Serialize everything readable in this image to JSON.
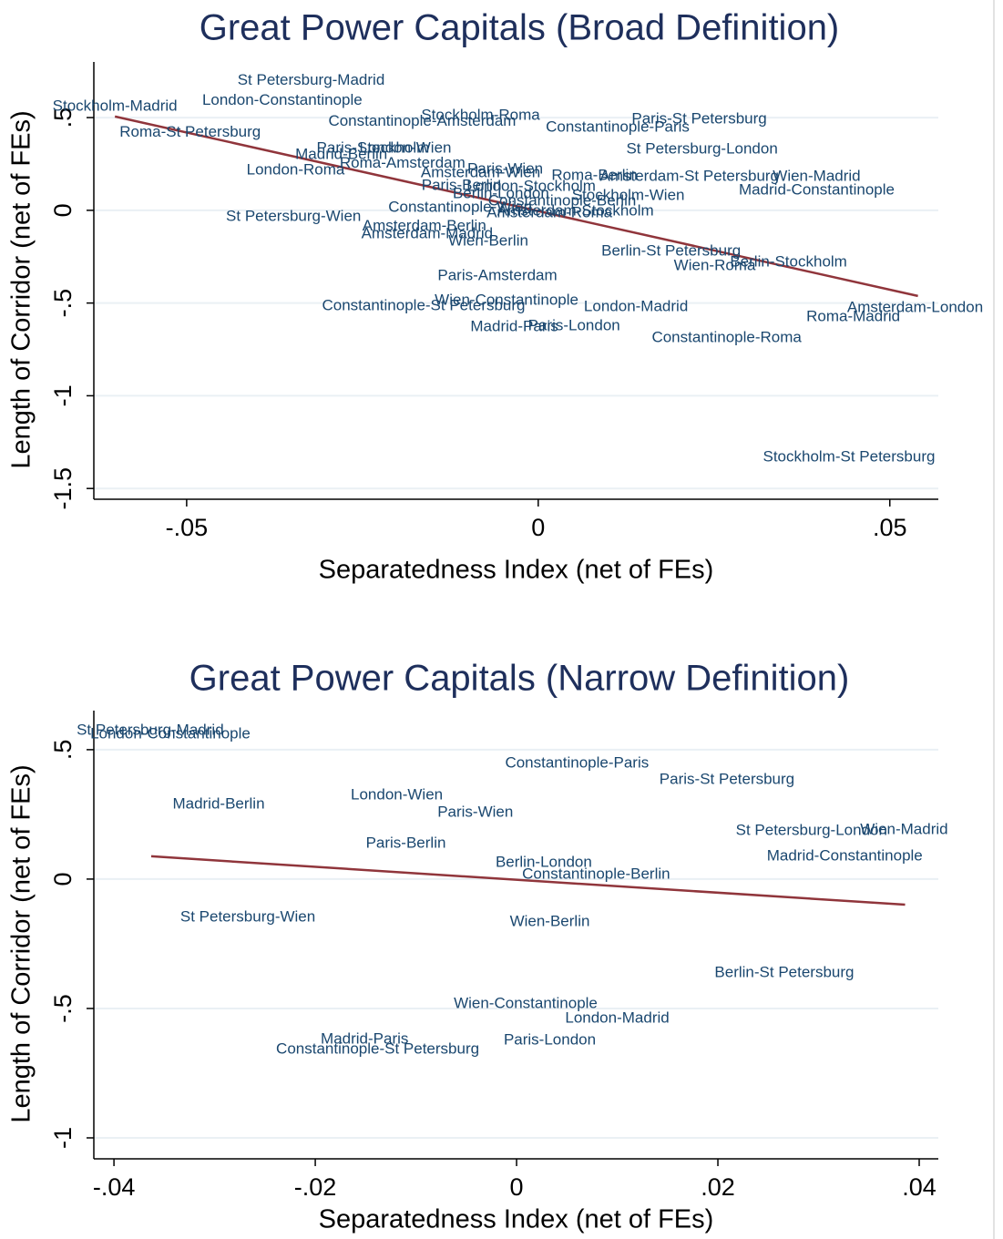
{
  "chart_data": [
    {
      "type": "scatter",
      "title": "Great Power Capitals (Broad Definition)",
      "x_label": "Separatedness Index (net of FEs)",
      "y_label": "Length of Corridor (net of FEs)",
      "xlim": [
        -0.0632,
        0.0569
      ],
      "ylim": [
        -1.558,
        0.8
      ],
      "xticks": [
        {
          "value": -0.05,
          "label": "-.05"
        },
        0,
        {
          "value": 0.05,
          "label": ".05"
        }
      ],
      "yticks": [
        {
          "value": -1.5,
          "label": "-1.5"
        },
        -1,
        {
          "value": -0.5,
          "label": "-.5"
        },
        0,
        {
          "value": 0.5,
          "label": ".5"
        }
      ],
      "grid": true,
      "label_color": "#1a476f",
      "title_color": "#1e2f5c",
      "labels": [
        "St Petersburg-Madrid",
        "Stockholm-Madrid",
        "London-Constantinople",
        "Roma-St Petersburg",
        "Constantinople-Amsterdam",
        "Stockholm-Roma",
        "Constantinople-Paris",
        "Paris-St Petersburg",
        "St Petersburg-London",
        "Paris-Stockholm",
        "London-Wien",
        "Madrid-Berlin",
        "Roma-Amsterdam",
        "London-Roma",
        "Amsterdam-Wien",
        "Paris-Wien",
        "Roma-Berlin",
        "Amsterdam-St Petersburg",
        "Wien-Madrid",
        "Madrid-Constantinople",
        "Paris-Berlin",
        "London-Stockholm",
        "Berlin-London",
        "Stockholm-Wien",
        "Constantinople-Berlin",
        "Constantinople-Wien",
        "Amsterdam-Stockholm",
        "Amsterdam-Roma",
        "St Petersburg-Wien",
        "Amsterdam-Berlin",
        "Amsterdam-Madrid",
        "Wien-Berlin",
        "Berlin-St Petersburg",
        "Wien-Roma",
        "Berlin-Stockholm",
        "Paris-Amsterdam",
        "Wien-Constantinople",
        "Constantinople-St Petersburg",
        "London-Madrid",
        "Amsterdam-London",
        "Roma-Madrid",
        "Madrid-Paris",
        "Paris-London",
        "Constantinople-Roma",
        "Stockholm-St Petersburg"
      ],
      "x": [
        -0.0323,
        -0.0602,
        -0.0364,
        -0.0495,
        -0.0165,
        -0.0082,
        0.0113,
        0.0229,
        0.0233,
        -0.0235,
        -0.0189,
        -0.028,
        -0.0193,
        -0.0345,
        -0.0082,
        -0.0047,
        0.008,
        0.0215,
        0.0396,
        0.0396,
        -0.0109,
        -0.001,
        -0.0053,
        0.0128,
        0.0034,
        -0.0111,
        0.0053,
        0.0016,
        -0.0348,
        -0.0162,
        -0.0158,
        -0.0071,
        0.0189,
        0.0251,
        0.0356,
        -0.0058,
        -0.0045,
        -0.0163,
        0.0139,
        0.0536,
        0.0448,
        -0.0034,
        0.0051,
        0.0268,
        0.0442
      ],
      "y": [
        0.698,
        0.56,
        0.59,
        0.418,
        0.477,
        0.511,
        0.447,
        0.491,
        0.329,
        0.334,
        0.334,
        0.3,
        0.251,
        0.216,
        0.201,
        0.221,
        0.187,
        0.182,
        0.182,
        0.108,
        0.133,
        0.128,
        0.088,
        0.079,
        0.049,
        0.015,
        -0.005,
        -0.015,
        -0.034,
        -0.088,
        -0.128,
        -0.167,
        -0.221,
        -0.3,
        -0.28,
        -0.354,
        -0.486,
        -0.516,
        -0.521,
        -0.526,
        -0.575,
        -0.629,
        -0.624,
        -0.688,
        -1.332
      ],
      "fit": {
        "x": [
          -0.0602,
          0.054
        ],
        "y": [
          0.506,
          -0.462
        ],
        "color": "#90353b"
      }
    },
    {
      "type": "scatter",
      "title": "Great Power Capitals (Narrow Definition)",
      "x_label": "Separatedness Index (net of FEs)",
      "y_label": "Length of Corridor (net of FEs)",
      "xlim": [
        -0.042,
        0.0419
      ],
      "ylim": [
        -1.081,
        0.651
      ],
      "xticks": [
        {
          "value": -0.04,
          "label": "-.04"
        },
        {
          "value": -0.02,
          "label": "-.02"
        },
        0,
        {
          "value": 0.02,
          "label": ".02"
        },
        {
          "value": 0.04,
          "label": ".04"
        }
      ],
      "yticks": [
        -1,
        {
          "value": -0.5,
          "label": "-.5"
        },
        0,
        {
          "value": 0.5,
          "label": ".5"
        }
      ],
      "grid": true,
      "label_color": "#1a476f",
      "title_color": "#1e2f5c",
      "labels": [
        "St Petersburg-Madrid",
        "London-Constantinople",
        "Constantinople-Paris",
        "Paris-St Petersburg",
        "Madrid-Berlin",
        "London-Wien",
        "Paris-Wien",
        "St Petersburg-London",
        "Wien-Madrid",
        "Madrid-Constantinople",
        "Paris-Berlin",
        "Berlin-London",
        "Constantinople-Berlin",
        "St Petersburg-Wien",
        "Wien-Berlin",
        "Berlin-St Petersburg",
        "Wien-Constantinople",
        "London-Madrid",
        "Madrid-Paris",
        "Paris-London",
        "Constantinople-St Petersburg"
      ],
      "x": [
        -0.0364,
        -0.0344,
        0.006,
        0.0209,
        -0.0296,
        -0.0119,
        -0.0041,
        0.0293,
        0.0385,
        0.0326,
        -0.011,
        0.0027,
        0.0079,
        -0.0267,
        0.0033,
        0.0266,
        0.0009,
        0.01,
        -0.0151,
        0.0033,
        -0.0138
      ],
      "y": [
        0.574,
        0.56,
        0.447,
        0.384,
        0.289,
        0.324,
        0.257,
        0.187,
        0.19,
        0.088,
        0.137,
        0.063,
        0.018,
        -0.148,
        -0.165,
        -0.363,
        -0.482,
        -0.539,
        -0.62,
        -0.623,
        -0.658
      ],
      "fit": {
        "x": [
          -0.0363,
          0.0386
        ],
        "y": [
          0.088,
          -0.099
        ],
        "color": "#90353b"
      }
    }
  ]
}
